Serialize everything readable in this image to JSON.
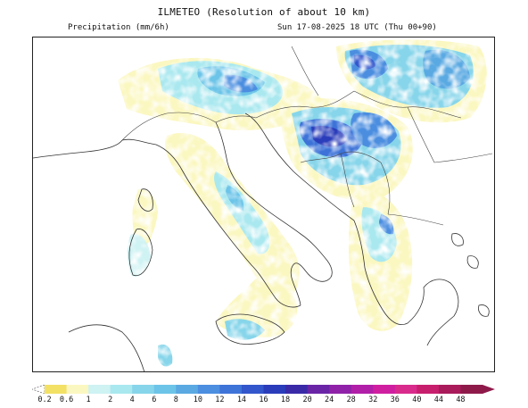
{
  "header": {
    "title": "ILMETEO (Resolution of about 10 km)",
    "variable": "Precipitation (mm/6h)",
    "valid_time": "Sun 17-08-2025 18 UTC (Thu 00+90)"
  },
  "map": {
    "region": "Italy and Balkans",
    "border_color": "#222222",
    "coast_color": "#333333"
  },
  "legend": {
    "labels": [
      "0.2",
      "0.6",
      "1",
      "2",
      "4",
      "6",
      "8",
      "10",
      "12",
      "14",
      "16",
      "18",
      "20",
      "24",
      "28",
      "32",
      "36",
      "40",
      "44",
      "48"
    ],
    "colors": [
      "#f3e166",
      "#fbf7c0",
      "#cff2f3",
      "#a9e8ef",
      "#87d5ea",
      "#6cc4e8",
      "#5aa9e2",
      "#4c8ee0",
      "#3e73d8",
      "#3356cc",
      "#2a3cba",
      "#3a2aa8",
      "#6a24a6",
      "#8f22a8",
      "#b11fa8",
      "#cf1fa0",
      "#d82b8c",
      "#c81e6e",
      "#a91b5a",
      "#8e1a4a"
    ]
  }
}
